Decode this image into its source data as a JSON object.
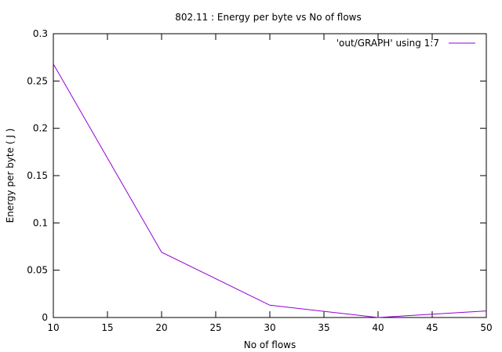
{
  "chart_data": {
    "type": "line",
    "title": "802.11 : Energy per byte vs No of flows",
    "xlabel": "No of flows",
    "ylabel": "Energy per byte ( J )",
    "xlim": [
      10,
      50
    ],
    "ylim": [
      0,
      0.3
    ],
    "xticks": [
      "10",
      "15",
      "20",
      "25",
      "30",
      "35",
      "40",
      "45",
      "50"
    ],
    "yticks": [
      "0",
      "0.05",
      "0.1",
      "0.15",
      "0.2",
      "0.25",
      "0.3"
    ],
    "grid": false,
    "legend_position": "top-right",
    "series": [
      {
        "name": "'out/GRAPH' using 1:7",
        "color": "#9400d3",
        "x": [
          10,
          20,
          30,
          40,
          50
        ],
        "y": [
          0.268,
          0.069,
          0.013,
          0.0,
          0.007
        ]
      }
    ]
  }
}
